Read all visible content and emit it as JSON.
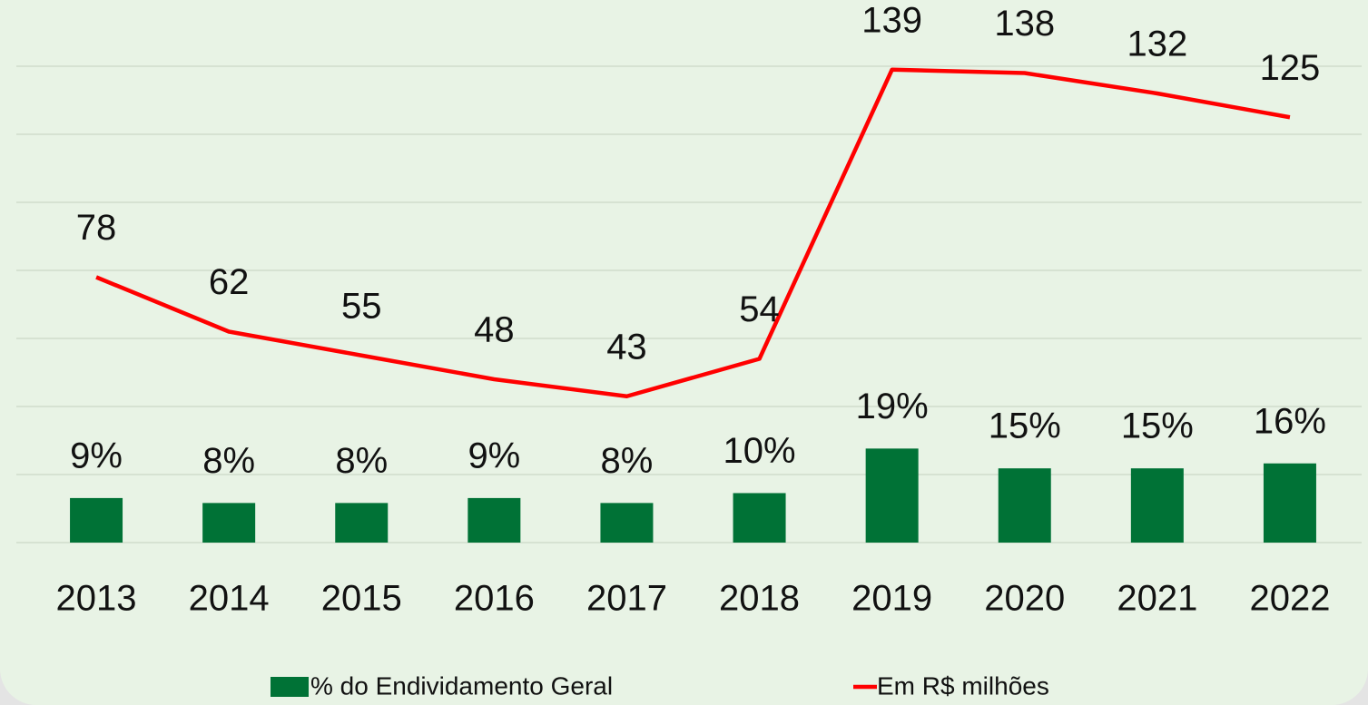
{
  "chart_data": {
    "type": "bar+line",
    "categories": [
      "2013",
      "2014",
      "2015",
      "2016",
      "2017",
      "2018",
      "2019",
      "2020",
      "2021",
      "2022"
    ],
    "series": [
      {
        "name": "% do Endividamento Geral",
        "type": "bar",
        "color": "#007236",
        "values": [
          9,
          8,
          8,
          9,
          8,
          10,
          19,
          15,
          15,
          16
        ],
        "value_labels": [
          "9%",
          "8%",
          "8%",
          "9%",
          "8%",
          "10%",
          "19%",
          "15%",
          "15%",
          "16%"
        ]
      },
      {
        "name": "Em R$ milhões",
        "type": "line",
        "axis": "y2",
        "color": "#ff0000",
        "values": [
          78,
          62,
          55,
          48,
          43,
          54,
          139,
          138,
          132,
          125
        ]
      }
    ],
    "ylim": [
      0,
      110
    ],
    "y2lim": [
      0,
      160
    ],
    "grid": true
  }
}
